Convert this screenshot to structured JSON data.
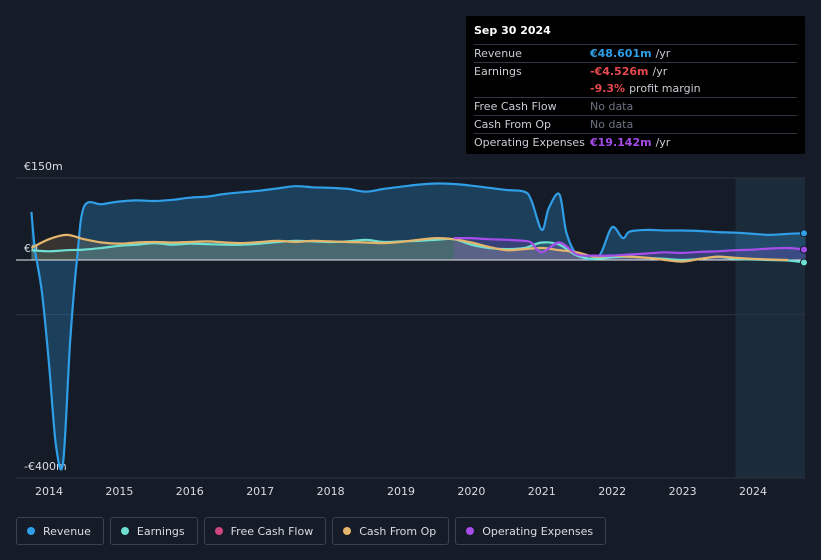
{
  "tooltip": {
    "date": "Sep 30 2024",
    "rows": [
      {
        "label": "Revenue",
        "value": "€48.601m",
        "unit": "/yr",
        "color": "#2f9ee6"
      },
      {
        "label": "Earnings",
        "value": "-€4.526m",
        "unit": "/yr",
        "color": "#e5484d"
      },
      {
        "label": "",
        "value": "-9.3%",
        "unit": "profit margin",
        "color": "#e5484d"
      },
      {
        "label": "Free Cash Flow",
        "value": "No data",
        "unit": "",
        "color": "#6b7280"
      },
      {
        "label": "Cash From Op",
        "value": "No data",
        "unit": "",
        "color": "#6b7280"
      },
      {
        "label": "Operating Expenses",
        "value": "€19.142m",
        "unit": "/yr",
        "color": "#a64dea"
      }
    ]
  },
  "legend": [
    {
      "label": "Revenue",
      "color": "#2f9ee6"
    },
    {
      "label": "Earnings",
      "color": "#6de0d1"
    },
    {
      "label": "Free Cash Flow",
      "color": "#d0467f"
    },
    {
      "label": "Cash From Op",
      "color": "#e4b56a"
    },
    {
      "label": "Operating Expenses",
      "color": "#a64dea"
    }
  ],
  "chart_data": {
    "type": "line",
    "title": "",
    "xlabel": "",
    "ylabel": "",
    "y_tick_labels": [
      "€150m",
      "€0",
      "-€400m"
    ],
    "y_ticks": [
      150,
      0,
      -400
    ],
    "ylim": [
      -420,
      150
    ],
    "xlim": [
      2013.6,
      2024.8
    ],
    "x_tick_labels": [
      "2014",
      "2015",
      "2016",
      "2017",
      "2018",
      "2019",
      "2020",
      "2021",
      "2022",
      "2023",
      "2024"
    ],
    "x_ticks": [
      2014,
      2015,
      2016,
      2017,
      2018,
      2019,
      2020,
      2021,
      2022,
      2023,
      2024
    ],
    "forecast_shade_start": 2023.75,
    "series": [
      {
        "name": "Revenue",
        "color": "#2f9ee6",
        "area": true,
        "x": [
          2013.75,
          2013.8,
          2013.9,
          2014.0,
          2014.1,
          2014.2,
          2014.3,
          2014.4,
          2014.5,
          2014.75,
          2015.0,
          2015.25,
          2015.5,
          2015.75,
          2016.0,
          2016.25,
          2016.5,
          2016.75,
          2017.0,
          2017.25,
          2017.5,
          2017.75,
          2018.0,
          2018.25,
          2018.5,
          2018.75,
          2019.0,
          2019.25,
          2019.5,
          2019.75,
          2020.0,
          2020.25,
          2020.5,
          2020.75,
          2020.85,
          2021.0,
          2021.1,
          2021.25,
          2021.35,
          2021.5,
          2021.75,
          2021.85,
          2022.0,
          2022.15,
          2022.25,
          2022.5,
          2022.75,
          2023.0,
          2023.25,
          2023.5,
          2023.75,
          2024.0,
          2024.25,
          2024.5,
          2024.75
        ],
        "y": [
          88,
          20,
          -60,
          -190,
          -340,
          -370,
          -150,
          5,
          98,
          102,
          107,
          109,
          108,
          110,
          114,
          116,
          121,
          124,
          127,
          131,
          135,
          133,
          132,
          130,
          125,
          130,
          134,
          138,
          140,
          139,
          136,
          132,
          128,
          125,
          110,
          55,
          95,
          120,
          50,
          10,
          2,
          15,
          60,
          40,
          52,
          55,
          54,
          54,
          53,
          51,
          50,
          48,
          46,
          48,
          49
        ]
      },
      {
        "name": "Earnings",
        "color": "#6de0d1",
        "area": true,
        "x": [
          2013.75,
          2014.0,
          2014.25,
          2014.5,
          2014.75,
          2015.0,
          2015.25,
          2015.5,
          2015.75,
          2016.0,
          2016.25,
          2016.5,
          2016.75,
          2017.0,
          2017.25,
          2017.5,
          2017.75,
          2018.0,
          2018.25,
          2018.5,
          2018.75,
          2019.0,
          2019.25,
          2019.5,
          2019.75,
          2020.0,
          2020.25,
          2020.5,
          2020.75,
          2021.0,
          2021.25,
          2021.5,
          2021.75,
          2022.0,
          2022.25,
          2022.5,
          2022.75,
          2023.0,
          2023.25,
          2023.5,
          2023.75,
          2024.0,
          2024.25,
          2024.5,
          2024.75
        ],
        "y": [
          18,
          16,
          18,
          19,
          22,
          26,
          28,
          31,
          28,
          30,
          29,
          28,
          28,
          30,
          33,
          35,
          34,
          33,
          34,
          37,
          33,
          34,
          35,
          37,
          38,
          28,
          22,
          20,
          22,
          32,
          28,
          8,
          2,
          5,
          6,
          4,
          2,
          0,
          2,
          6,
          2,
          1,
          0,
          -1,
          -4.5
        ]
      },
      {
        "name": "Cash From Op",
        "color": "#e4b56a",
        "area": true,
        "x": [
          2013.75,
          2014.0,
          2014.25,
          2014.5,
          2014.75,
          2015.0,
          2015.25,
          2015.5,
          2015.75,
          2016.0,
          2016.25,
          2016.5,
          2016.75,
          2017.0,
          2017.25,
          2017.5,
          2017.75,
          2018.0,
          2018.25,
          2018.5,
          2018.75,
          2019.0,
          2019.25,
          2019.5,
          2019.75,
          2020.0,
          2020.25,
          2020.5,
          2020.75,
          2021.0,
          2021.25,
          2021.5,
          2021.75,
          2022.0,
          2022.25,
          2022.5,
          2022.75,
          2023.0,
          2023.25,
          2023.5,
          2023.75,
          2024.0,
          2024.25,
          2024.5
        ],
        "y": [
          22,
          38,
          46,
          38,
          32,
          30,
          32,
          33,
          32,
          33,
          34,
          32,
          31,
          33,
          35,
          33,
          35,
          34,
          33,
          32,
          31,
          33,
          37,
          40,
          38,
          32,
          24,
          18,
          20,
          22,
          18,
          14,
          6,
          8,
          6,
          4,
          0,
          -3,
          2,
          6,
          4,
          2,
          1,
          0
        ]
      },
      {
        "name": "Operating Expenses",
        "color": "#a64dea",
        "area": true,
        "x": [
          2019.75,
          2020.0,
          2020.25,
          2020.5,
          2020.75,
          2020.85,
          2021.0,
          2021.25,
          2021.5,
          2021.75,
          2022.0,
          2022.25,
          2022.5,
          2022.75,
          2023.0,
          2023.25,
          2023.5,
          2023.75,
          2024.0,
          2024.25,
          2024.5,
          2024.75
        ],
        "y": [
          40,
          40,
          38,
          37,
          35,
          32,
          14,
          32,
          10,
          8,
          8,
          10,
          12,
          14,
          13,
          15,
          16,
          18,
          19,
          21,
          22,
          19
        ]
      }
    ]
  }
}
